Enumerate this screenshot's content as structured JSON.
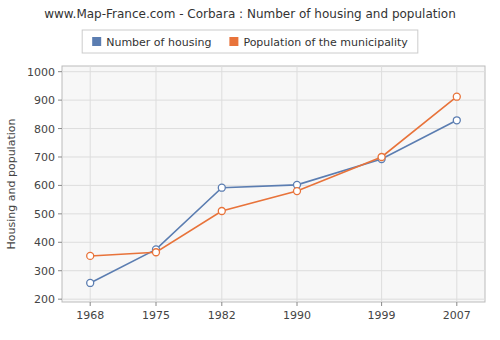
{
  "chart_data": {
    "type": "line",
    "title": "www.Map-France.com - Corbara : Number of housing and population",
    "y_label": "Housing and population",
    "x": [
      1968,
      1975,
      1982,
      1990,
      1999,
      2007
    ],
    "series": [
      {
        "name": "Number of housing",
        "color": "#5b7db1",
        "marker": "circle",
        "values": [
          257,
          375,
          592,
          602,
          693,
          829
        ]
      },
      {
        "name": "Population of the municipality",
        "color": "#e8733a",
        "marker": "circle",
        "values": [
          352,
          365,
          510,
          580,
          700,
          912
        ]
      }
    ],
    "xlim": [
      1965,
      2010
    ],
    "xticks": [
      1968,
      1975,
      1982,
      1990,
      1999,
      2007
    ],
    "ylim": [
      190,
      1020
    ],
    "yticks": [
      200,
      300,
      400,
      500,
      600,
      700,
      800,
      900,
      1000
    ],
    "grid": true,
    "legend": "top"
  }
}
